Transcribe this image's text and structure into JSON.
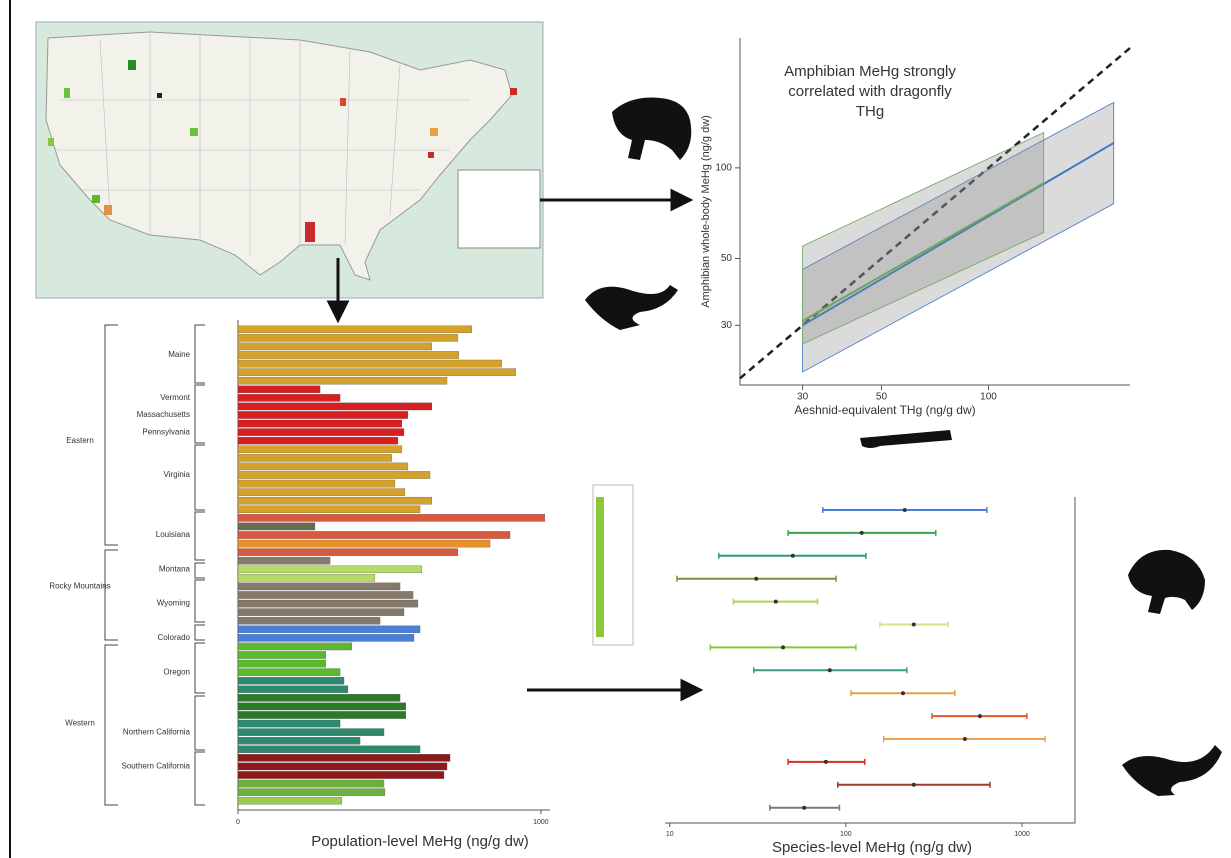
{
  "chart_data": [
    {
      "type": "line",
      "title": "Amphibian MeHg strongly correlated with dragonfly THg",
      "xlabel": "Aeshnid-equivalent THg (ng/g dw)",
      "ylabel": "Amphibian whole-body MeHg (ng/g dw)",
      "log_scale": true,
      "xlim": [
        20,
        250
      ],
      "ylim": [
        19,
        270
      ],
      "xticks": [
        30,
        50,
        100
      ],
      "yticks": [
        30,
        50,
        100
      ],
      "series": [
        {
          "color": "#222222",
          "dashed": true,
          "x": [
            20,
            250
          ],
          "values": [
            20,
            250
          ]
        },
        {
          "color": "#3a78c8",
          "x": [
            30,
            225
          ],
          "values": [
            30,
            121
          ],
          "lower": [
            21,
            76
          ],
          "upper": [
            46,
            165
          ]
        },
        {
          "color": "#6aa85a",
          "x": [
            30,
            143
          ],
          "values": [
            31,
            89
          ],
          "lower": [
            26,
            61
          ],
          "upper": [
            55,
            131
          ]
        }
      ]
    },
    {
      "type": "bar",
      "orientation": "horizontal",
      "xlabel": "Population-level MeHg (ng/g dw)",
      "xlim": [
        0,
        1030
      ],
      "xticks": [
        0,
        1000
      ],
      "categories": [
        null,
        null,
        null,
        "Maine",
        null,
        null,
        null,
        null,
        "Vermont",
        null,
        "Massachusetts",
        null,
        "Pennsylvania",
        null,
        null,
        null,
        null,
        "Virginia",
        null,
        null,
        null,
        null,
        null,
        null,
        "Louisiana",
        null,
        null,
        null,
        "Montana",
        null,
        null,
        null,
        "Wyoming",
        null,
        null,
        null,
        "Colorado",
        null,
        null,
        null,
        "Oregon",
        null,
        null,
        null,
        null,
        null,
        null,
        "Northern California",
        null,
        null,
        null,
        "Southern California",
        null,
        null,
        null,
        null
      ],
      "regions": [
        null,
        null,
        null,
        null,
        null,
        null,
        null,
        null,
        null,
        null,
        null,
        null,
        null,
        "Eastern",
        null,
        null,
        null,
        null,
        null,
        null,
        null,
        null,
        null,
        null,
        null,
        null,
        null,
        null,
        null,
        null,
        "Rocky Mountains",
        null,
        null,
        null,
        null,
        null,
        null,
        null,
        null,
        null,
        null,
        null,
        null,
        null,
        null,
        null,
        "Western",
        null,
        null,
        null,
        null,
        null,
        null,
        null,
        null,
        null
      ],
      "values": [
        772,
        726,
        640,
        729,
        871,
        917,
        690,
        271,
        337,
        640,
        561,
        541,
        548,
        528,
        541,
        508,
        561,
        634,
        518,
        551,
        640,
        601,
        1013,
        254,
        898,
        832,
        726,
        304,
        607,
        452,
        535,
        578,
        594,
        548,
        469,
        601,
        581,
        376,
        290,
        290,
        337,
        350,
        363,
        535,
        554,
        554,
        337,
        482,
        403,
        601,
        700,
        690,
        680,
        482,
        485,
        343
      ],
      "colors": [
        "#d4a22a",
        "#d4a22a",
        "#d4a22a",
        "#d4a22a",
        "#d4a22a",
        "#d4a22a",
        "#d4a22a",
        "#d81e1e",
        "#d81e1e",
        "#d81e1e",
        "#d81e1e",
        "#d81e1e",
        "#d81e1e",
        "#d81e1e",
        "#d4a22a",
        "#d4a22a",
        "#d4a22a",
        "#d4a22a",
        "#d4a22a",
        "#d4a22a",
        "#d4a22a",
        "#d4a22a",
        "#d9593f",
        "#6e6a4e",
        "#d9593f",
        "#e8902a",
        "#d9593f",
        "#857a6a",
        "#b6d96a",
        "#b6d96a",
        "#857a6a",
        "#857a6a",
        "#857a6a",
        "#857a6a",
        "#857a6a",
        "#4a7fd8",
        "#4a7fd8",
        "#5cb82e",
        "#5cb82e",
        "#5cb82e",
        "#5cb82e",
        "#2e8a6e",
        "#2e8a6e",
        "#2a7a2a",
        "#2a7a2a",
        "#2a7a2a",
        "#2e8a6e",
        "#2e8a6e",
        "#2e8a6e",
        "#2e8a6e",
        "#8c1a1a",
        "#8c1a1a",
        "#8c1a1a",
        "#6cb040",
        "#6cb040",
        "#9acc50"
      ]
    },
    {
      "type": "interval",
      "xlabel": "Species-level MeHg (ng/g dw)",
      "log_scale": true,
      "xlim": [
        9.4,
        2000
      ],
      "xticks": [
        10,
        100,
        1000
      ],
      "low": [
        74,
        47,
        19,
        11,
        23,
        156,
        17,
        30,
        107,
        308,
        164,
        47,
        90,
        37
      ],
      "values": [
        216,
        123,
        50,
        31,
        40,
        243,
        44,
        81,
        211,
        577,
        474,
        77,
        243,
        58
      ],
      "high": [
        632,
        324,
        130,
        88,
        69,
        380,
        114,
        222,
        416,
        1067,
        1352,
        128,
        658,
        92
      ],
      "colors": [
        "#4a7fd8",
        "#3aa04a",
        "#2e9a6e",
        "#8a8a3a",
        "#a8d84a",
        "#d8e08a",
        "#8ac83a",
        "#3a9a8a",
        "#e8a040",
        "#e05a2a",
        "#f0a050",
        "#d82a2a",
        "#a03a2a",
        "#7a7a7a"
      ]
    }
  ]
}
